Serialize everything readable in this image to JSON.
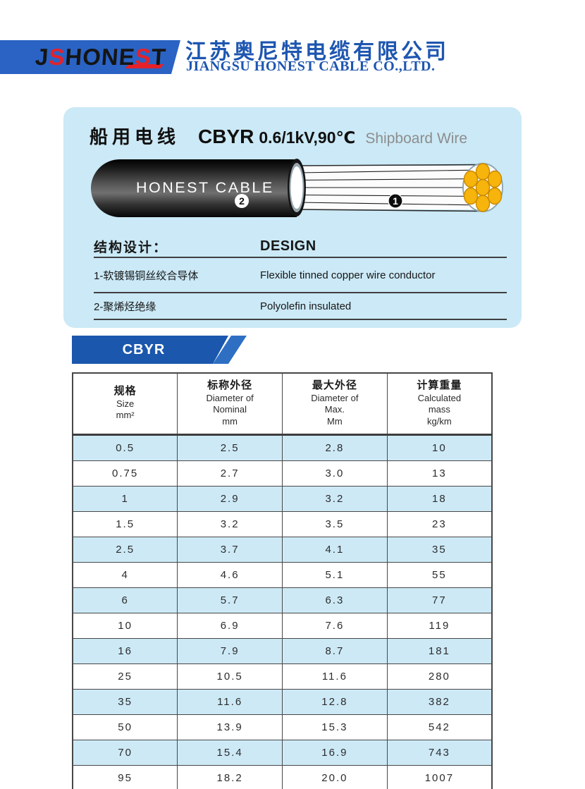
{
  "header": {
    "logo": {
      "letters": [
        {
          "ch": "J",
          "red": false
        },
        {
          "ch": "S",
          "red": true
        },
        {
          "ch": "H",
          "red": false
        },
        {
          "ch": "O",
          "red": false
        },
        {
          "ch": "N",
          "red": false
        },
        {
          "ch": "E",
          "red": false
        },
        {
          "ch": "S",
          "red": true
        },
        {
          "ch": "T",
          "red": false
        }
      ]
    },
    "company_name_cn": "江苏奥尼特电缆有限公司",
    "company_name_en": "JIANGSU HONEST CABLE CO.,LTD."
  },
  "product_panel": {
    "title_cn": "船用电线",
    "model_code": "CBYR",
    "model_spec": "0.6/1kV,90℃",
    "title_en": "Shipboard Wire",
    "cable": {
      "brand_text": "HONEST CABLE",
      "marker_conductor": "1",
      "marker_insulation": "2"
    },
    "design": {
      "heading_cn": "结构设计：",
      "heading_en": "DESIGN",
      "rows": [
        {
          "cn": "1-软镀锡铜丝绞合导体",
          "en": "Flexible tinned copper wire conductor"
        },
        {
          "cn": "2-聚烯烃绝缘",
          "en": "Polyolefin insulated"
        }
      ]
    }
  },
  "series_tab": {
    "label": "CBYR"
  },
  "spec_table": {
    "columns": [
      {
        "cn": "规格",
        "lines": [
          "Size",
          "mm²"
        ]
      },
      {
        "cn": "标称外径",
        "lines": [
          "Diameter of",
          "Nominal",
          "mm"
        ]
      },
      {
        "cn": "最大外径",
        "lines": [
          "Diameter of",
          "Max.",
          "Mm"
        ]
      },
      {
        "cn": "计算重量",
        "lines": [
          "Calculated",
          "mass",
          "kg/km"
        ]
      }
    ],
    "rows": [
      [
        "0.5",
        "2.5",
        "2.8",
        "10"
      ],
      [
        "0.75",
        "2.7",
        "3.0",
        "13"
      ],
      [
        "1",
        "2.9",
        "3.2",
        "18"
      ],
      [
        "1.5",
        "3.2",
        "3.5",
        "23"
      ],
      [
        "2.5",
        "3.7",
        "4.1",
        "35"
      ],
      [
        "4",
        "4.6",
        "5.1",
        "55"
      ],
      [
        "6",
        "5.7",
        "6.3",
        "77"
      ],
      [
        "10",
        "6.9",
        "7.6",
        "119"
      ],
      [
        "16",
        "7.9",
        "8.7",
        "181"
      ],
      [
        "25",
        "10.5",
        "11.6",
        "280"
      ],
      [
        "35",
        "11.6",
        "12.8",
        "382"
      ],
      [
        "50",
        "13.9",
        "15.3",
        "542"
      ],
      [
        "70",
        "15.4",
        "16.9",
        "743"
      ],
      [
        "95",
        "18.2",
        "20.0",
        "1007"
      ]
    ]
  },
  "colors": {
    "brand_blue": "#2a63c4",
    "brand_red": "#e62129",
    "company_text_blue": "#1e56b0",
    "panel_bg": "#cbe9f6",
    "tab_blue": "#1a57ad",
    "tab_accent_blue": "#2e6fc4",
    "row_alt_bg": "#cde9f6",
    "strand_orange": "#f6b40c",
    "subtitle_gray": "#8d8d8d"
  }
}
